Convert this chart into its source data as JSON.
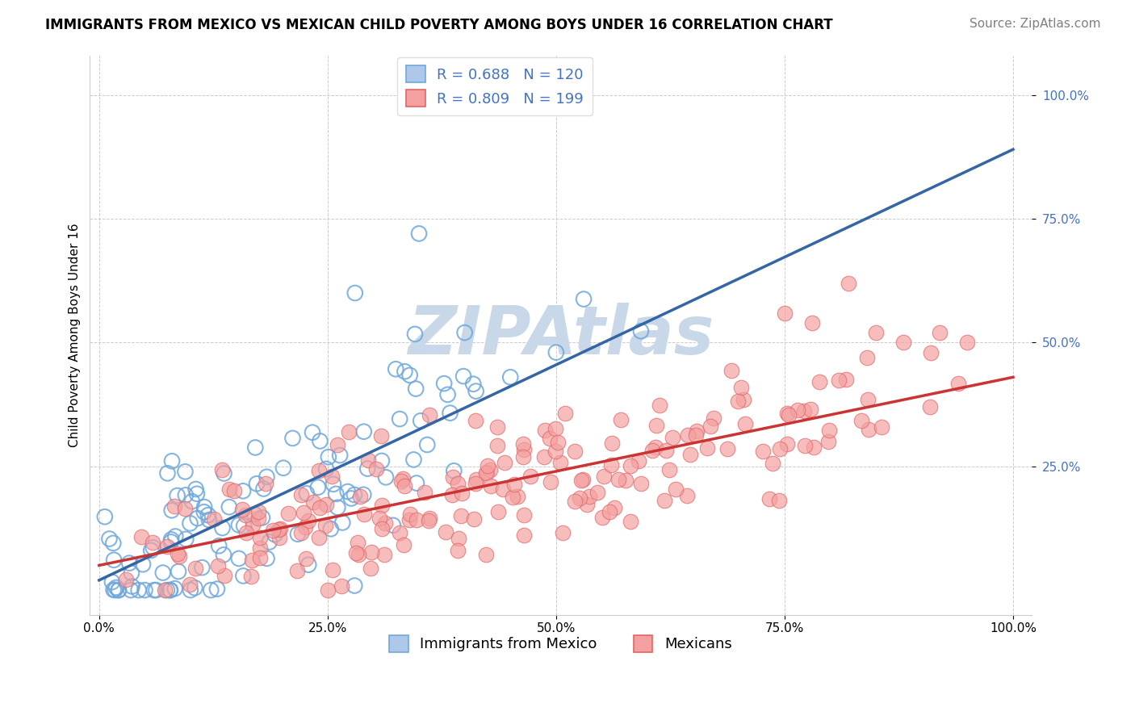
{
  "title": "IMMIGRANTS FROM MEXICO VS MEXICAN CHILD POVERTY AMONG BOYS UNDER 16 CORRELATION CHART",
  "source": "Source: ZipAtlas.com",
  "ylabel": "Child Poverty Among Boys Under 16",
  "blue_color": "#6fa8dc",
  "blue_fill": "#adc8e8",
  "pink_color": "#e06666",
  "pink_fill": "#f4a0a0",
  "blue_line_color": "#3465a4",
  "pink_line_color": "#cc3333",
  "tick_color": "#4472c4",
  "grid_color": "#cccccc",
  "watermark_text": "ZIPAtlas",
  "watermark_color": "#c8d8e8",
  "legend_entry1": "R = 0.688   N = 120",
  "legend_entry2": "R = 0.809   N = 199",
  "legend_label1": "Immigrants from Mexico",
  "legend_label2": "Mexicans",
  "N_blue": 120,
  "N_pink": 199,
  "blue_slope": 0.87,
  "blue_intercept": 0.02,
  "pink_slope": 0.38,
  "pink_intercept": 0.05,
  "title_fontsize": 12,
  "source_fontsize": 11,
  "axis_label_fontsize": 11,
  "tick_fontsize": 11,
  "legend_fontsize": 13,
  "watermark_fontsize": 60
}
